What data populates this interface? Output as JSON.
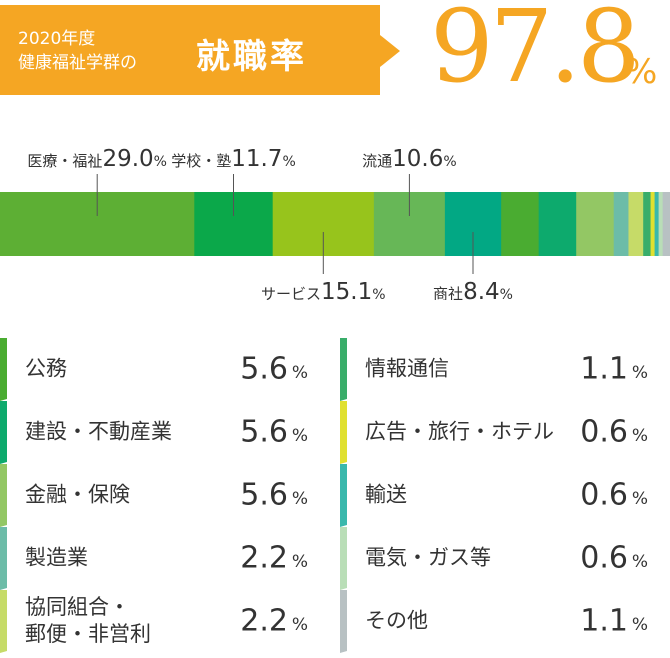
{
  "header": {
    "subtitle": "2020年度\n健康福祉学群の",
    "title": "就職率",
    "rate": "97.8",
    "rate_unit": "%"
  },
  "chart_data": {
    "type": "bar",
    "orientation": "stacked-horizontal",
    "unit": "%",
    "categories": [
      "医療・福祉",
      "学校・塾",
      "サービス",
      "流通",
      "商社",
      "公務",
      "建設・不動産業",
      "金融・保険",
      "製造業",
      "協同組合・郵便・非営利",
      "情報通信",
      "広告・旅行・ホテル",
      "輸送",
      "電気・ガス等",
      "その他"
    ],
    "values": [
      29.0,
      11.7,
      15.1,
      10.6,
      8.4,
      5.6,
      5.6,
      5.6,
      2.2,
      2.2,
      1.1,
      0.6,
      0.6,
      0.6,
      1.1
    ],
    "colors": [
      "#5daf34",
      "#0ba84a",
      "#97c41c",
      "#67b757",
      "#02a884",
      "#4aac31",
      "#0daa6d",
      "#93c764",
      "#6cbca8",
      "#c6db68",
      "#39ad6a",
      "#e0e030",
      "#3ab8ac",
      "#b9deb7",
      "#b8c1c3"
    ],
    "callouts": [
      {
        "category": "医療・福祉",
        "value_text": "29.0",
        "unit": "%",
        "side": "top"
      },
      {
        "category": "学校・塾",
        "value_text": "11.7",
        "unit": "%",
        "side": "top"
      },
      {
        "category": "流通",
        "value_text": "10.6",
        "unit": "%",
        "side": "top"
      },
      {
        "category": "サービス",
        "value_text": "15.1",
        "unit": "%",
        "side": "bottom"
      },
      {
        "category": "商社",
        "value_text": "8.4",
        "unit": "%",
        "side": "bottom"
      }
    ]
  },
  "legend": {
    "left": [
      {
        "label": "公務",
        "value": "5.6",
        "unit": "%",
        "color": "#4aac31"
      },
      {
        "label": "建設・不動産業",
        "value": "5.6",
        "unit": "%",
        "color": "#0daa6d"
      },
      {
        "label": "金融・保険",
        "value": "5.6",
        "unit": "%",
        "color": "#93c764"
      },
      {
        "label": "製造業",
        "value": "2.2",
        "unit": "%",
        "color": "#6cbca8"
      },
      {
        "label": "協同組合・\n郵便・非営利",
        "value": "2.2",
        "unit": "%",
        "color": "#c6db68"
      }
    ],
    "right": [
      {
        "label": "情報通信",
        "value": "1.1",
        "unit": "%",
        "color": "#39ad6a"
      },
      {
        "label": "広告・旅行・ホテル",
        "value": "0.6",
        "unit": "%",
        "color": "#e0e030"
      },
      {
        "label": "輸送",
        "value": "0.6",
        "unit": "%",
        "color": "#3ab8ac"
      },
      {
        "label": "電気・ガス等",
        "value": "0.6",
        "unit": "%",
        "color": "#b9deb7"
      },
      {
        "label": "その他",
        "value": "1.1",
        "unit": "%",
        "color": "#b8c1c3"
      }
    ]
  }
}
